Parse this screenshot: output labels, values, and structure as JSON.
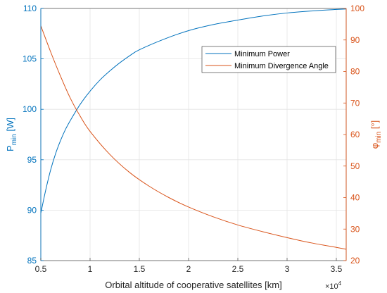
{
  "chart_data": {
    "type": "line",
    "xlabel": "Orbital altitude of cooperative satellites [km]",
    "x_multiplier_label": "×10",
    "x_multiplier_exponent": "4",
    "xlim": [
      0.5,
      3.6
    ],
    "xticks": [
      0.5,
      1,
      1.5,
      2,
      2.5,
      3,
      3.5
    ],
    "xtick_labels": [
      "0.5",
      "1",
      "1.5",
      "2",
      "2.5",
      "3",
      "3.5"
    ],
    "y_left": {
      "label_main": "P",
      "label_sub": "min",
      "label_unit": " [W]",
      "lim": [
        85,
        110
      ],
      "ticks": [
        85,
        90,
        95,
        100,
        105,
        110
      ],
      "tick_labels": [
        "85",
        "90",
        "95",
        "100",
        "105",
        "110"
      ],
      "color": "#0072BD"
    },
    "y_right": {
      "label_main": "φ",
      "label_sub": "min",
      "label_unit": " [°]",
      "lim": [
        20,
        100
      ],
      "ticks": [
        20,
        30,
        40,
        50,
        60,
        70,
        80,
        90,
        100
      ],
      "tick_labels": [
        "20",
        "30",
        "40",
        "50",
        "60",
        "70",
        "80",
        "90",
        "100"
      ],
      "color": "#D95319"
    },
    "grid": true,
    "legend_position": "top-right",
    "series": [
      {
        "name": "Minimum Power",
        "axis": "left",
        "color": "#0072BD",
        "x": [
          0.5,
          0.55,
          0.6,
          0.65,
          0.7,
          0.75,
          0.8,
          0.9,
          1.0,
          1.1,
          1.2,
          1.3,
          1.4,
          1.5,
          1.75,
          2.0,
          2.25,
          2.5,
          2.75,
          3.0,
          3.25,
          3.5,
          3.6
        ],
        "values": [
          89.7,
          92.0,
          94.0,
          95.6,
          96.9,
          98.0,
          98.9,
          100.5,
          101.8,
          102.9,
          103.8,
          104.6,
          105.3,
          105.9,
          106.95,
          107.8,
          108.4,
          108.85,
          109.25,
          109.55,
          109.75,
          109.9,
          109.95
        ]
      },
      {
        "name": "Minimum Divergence Angle",
        "axis": "right",
        "color": "#D95319",
        "x": [
          0.5,
          0.6,
          0.7,
          0.8,
          0.9,
          1.0,
          1.2,
          1.4,
          1.6,
          1.8,
          2.0,
          2.25,
          2.5,
          2.75,
          3.0,
          3.25,
          3.5,
          3.6
        ],
        "values": [
          94.5,
          86.2,
          78.5,
          71.5,
          65.8,
          61.0,
          53.7,
          48.0,
          43.6,
          40.0,
          37.0,
          33.9,
          31.3,
          29.2,
          27.3,
          25.6,
          24.2,
          23.6
        ]
      }
    ]
  }
}
